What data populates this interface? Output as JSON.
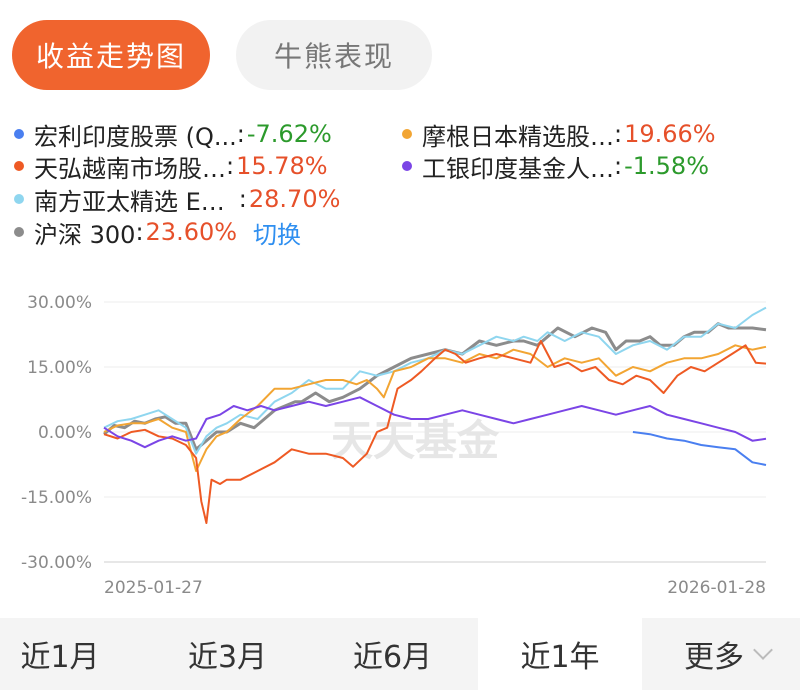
{
  "tabs": {
    "trend": "收益走势图",
    "bull_bear": "牛熊表现"
  },
  "legend": [
    {
      "name": "宏利印度股票 (Q...",
      "value": "-7.62%",
      "sign": "neg",
      "color": "#4a7ff0"
    },
    {
      "name": "摩根日本精选股…",
      "value": "19.66%",
      "sign": "pos",
      "color": "#f2a533"
    },
    {
      "name": "天弘越南市场股…",
      "value": "15.78%",
      "sign": "pos",
      "color": "#ee5a24"
    },
    {
      "name": "工银印度基金人…",
      "value": "-1.58%",
      "sign": "neg",
      "color": "#7b45e6"
    },
    {
      "name": "南方亚太精选 E…",
      "value": "28.70%",
      "sign": "pos",
      "color": "#8fd6ef"
    },
    {
      "name": "沪深 300",
      "value": "23.60%",
      "sign": "pos",
      "color": "#8c8c8c"
    }
  ],
  "switch_label": "切换",
  "watermark": "天天基金",
  "periods": [
    "近1月",
    "近3月",
    "近6月",
    "近1年",
    "更多"
  ],
  "active_period": "近1年",
  "chart_data": {
    "type": "line",
    "ylim": [
      -30,
      30
    ],
    "y_ticks": [
      "30.00%",
      "15.00%",
      "0.00%",
      "-15.00%",
      "-30.00%"
    ],
    "y_tick_values": [
      30,
      15,
      0,
      -15,
      -30
    ],
    "x_labels": [
      "2025-01-27",
      "2026-01-28"
    ],
    "grid": true,
    "series": [
      {
        "name": "沪深 300",
        "color": "#8c8c8c",
        "points": [
          [
            0,
            -0.5
          ],
          [
            0.03,
            1.5
          ],
          [
            0.06,
            1
          ],
          [
            0.09,
            2.5
          ],
          [
            0.12,
            2
          ],
          [
            0.15,
            3
          ],
          [
            0.18,
            3.5
          ],
          [
            0.21,
            2
          ],
          [
            0.24,
            2
          ],
          [
            0.27,
            -4
          ],
          [
            0.3,
            -2
          ],
          [
            0.33,
            0
          ],
          [
            0.36,
            0
          ],
          [
            0.4,
            2
          ],
          [
            0.44,
            1
          ],
          [
            0.47,
            3
          ],
          [
            0.5,
            5
          ],
          [
            0.53,
            6
          ],
          [
            0.56,
            7
          ],
          [
            0.58,
            7
          ],
          [
            0.62,
            9
          ],
          [
            0.66,
            7
          ],
          [
            0.7,
            8
          ],
          [
            0.75,
            10
          ],
          [
            0.8,
            13
          ],
          [
            0.85,
            15
          ],
          [
            0.9,
            17
          ],
          [
            0.95,
            18
          ],
          [
            1,
            19
          ],
          [
            1.05,
            18
          ],
          [
            1.1,
            21
          ],
          [
            1.15,
            20
          ],
          [
            1.2,
            21
          ],
          [
            1.23,
            21
          ],
          [
            1.27,
            20
          ],
          [
            1.3,
            22
          ],
          [
            1.33,
            24
          ],
          [
            1.38,
            22
          ],
          [
            1.43,
            24
          ],
          [
            1.47,
            23
          ],
          [
            1.5,
            19
          ],
          [
            1.53,
            21
          ],
          [
            1.57,
            21
          ],
          [
            1.6,
            22
          ],
          [
            1.63,
            20
          ],
          [
            1.67,
            20
          ],
          [
            1.7,
            22
          ],
          [
            1.73,
            23
          ],
          [
            1.77,
            23
          ],
          [
            1.8,
            25
          ],
          [
            1.83,
            24
          ],
          [
            1.86,
            24
          ],
          [
            1.9,
            24
          ],
          [
            1.94,
            23.6
          ]
        ]
      },
      {
        "name": "南方亚太精选 E…",
        "color": "#8fd6ef",
        "points": [
          [
            0,
            1
          ],
          [
            0.04,
            2.5
          ],
          [
            0.08,
            3
          ],
          [
            0.12,
            4
          ],
          [
            0.16,
            5
          ],
          [
            0.2,
            3
          ],
          [
            0.24,
            1
          ],
          [
            0.27,
            -5
          ],
          [
            0.3,
            -1
          ],
          [
            0.33,
            1
          ],
          [
            0.36,
            2
          ],
          [
            0.4,
            4
          ],
          [
            0.45,
            3
          ],
          [
            0.5,
            7
          ],
          [
            0.55,
            9
          ],
          [
            0.6,
            12
          ],
          [
            0.65,
            10
          ],
          [
            0.7,
            10
          ],
          [
            0.75,
            14
          ],
          [
            0.8,
            13
          ],
          [
            0.85,
            14
          ],
          [
            0.9,
            16
          ],
          [
            0.95,
            17
          ],
          [
            1,
            19
          ],
          [
            1.05,
            18
          ],
          [
            1.1,
            20
          ],
          [
            1.15,
            22
          ],
          [
            1.2,
            21
          ],
          [
            1.23,
            22
          ],
          [
            1.27,
            21
          ],
          [
            1.3,
            23
          ],
          [
            1.35,
            21
          ],
          [
            1.4,
            23
          ],
          [
            1.45,
            22
          ],
          [
            1.5,
            18
          ],
          [
            1.55,
            20
          ],
          [
            1.6,
            21
          ],
          [
            1.65,
            19
          ],
          [
            1.7,
            22
          ],
          [
            1.75,
            22
          ],
          [
            1.8,
            25
          ],
          [
            1.85,
            24
          ],
          [
            1.9,
            27
          ],
          [
            1.94,
            28.7
          ]
        ]
      },
      {
        "name": "摩根日本精选股…",
        "color": "#f2a533",
        "points": [
          [
            0,
            0
          ],
          [
            0.04,
            1.5
          ],
          [
            0.08,
            2
          ],
          [
            0.12,
            2
          ],
          [
            0.16,
            3
          ],
          [
            0.2,
            1
          ],
          [
            0.24,
            0
          ],
          [
            0.27,
            -9
          ],
          [
            0.3,
            -4
          ],
          [
            0.33,
            -1
          ],
          [
            0.36,
            0
          ],
          [
            0.4,
            3
          ],
          [
            0.45,
            6
          ],
          [
            0.5,
            10
          ],
          [
            0.55,
            10
          ],
          [
            0.6,
            11
          ],
          [
            0.65,
            12
          ],
          [
            0.7,
            12
          ],
          [
            0.74,
            11
          ],
          [
            0.77,
            12
          ],
          [
            0.8,
            10
          ],
          [
            0.82,
            8
          ],
          [
            0.85,
            14
          ],
          [
            0.9,
            15
          ],
          [
            0.95,
            17
          ],
          [
            1,
            17
          ],
          [
            1.05,
            16
          ],
          [
            1.1,
            18
          ],
          [
            1.15,
            17
          ],
          [
            1.2,
            19
          ],
          [
            1.25,
            18
          ],
          [
            1.3,
            15
          ],
          [
            1.35,
            17
          ],
          [
            1.4,
            16
          ],
          [
            1.45,
            17
          ],
          [
            1.5,
            13
          ],
          [
            1.55,
            15
          ],
          [
            1.6,
            14
          ],
          [
            1.65,
            16
          ],
          [
            1.7,
            17
          ],
          [
            1.75,
            17
          ],
          [
            1.8,
            18
          ],
          [
            1.85,
            20
          ],
          [
            1.9,
            19
          ],
          [
            1.94,
            19.66
          ]
        ]
      },
      {
        "name": "天弘越南市场股…",
        "color": "#ee5a24",
        "points": [
          [
            0,
            -0.5
          ],
          [
            0.04,
            -1.5
          ],
          [
            0.08,
            0
          ],
          [
            0.12,
            0.5
          ],
          [
            0.16,
            -1
          ],
          [
            0.2,
            -1.5
          ],
          [
            0.24,
            -3
          ],
          [
            0.27,
            -6
          ],
          [
            0.285,
            -16
          ],
          [
            0.3,
            -21
          ],
          [
            0.315,
            -11
          ],
          [
            0.34,
            -12
          ],
          [
            0.36,
            -11
          ],
          [
            0.4,
            -11
          ],
          [
            0.45,
            -9
          ],
          [
            0.5,
            -7
          ],
          [
            0.55,
            -4
          ],
          [
            0.6,
            -5
          ],
          [
            0.65,
            -5
          ],
          [
            0.7,
            -6
          ],
          [
            0.73,
            -8
          ],
          [
            0.77,
            -5
          ],
          [
            0.8,
            0
          ],
          [
            0.83,
            1
          ],
          [
            0.86,
            10
          ],
          [
            0.9,
            12
          ],
          [
            0.93,
            14
          ],
          [
            0.97,
            17
          ],
          [
            1,
            19
          ],
          [
            1.03,
            18
          ],
          [
            1.06,
            16
          ],
          [
            1.1,
            17
          ],
          [
            1.15,
            18
          ],
          [
            1.2,
            17
          ],
          [
            1.25,
            16
          ],
          [
            1.28,
            21
          ],
          [
            1.32,
            15
          ],
          [
            1.36,
            16
          ],
          [
            1.4,
            14
          ],
          [
            1.44,
            15
          ],
          [
            1.48,
            12
          ],
          [
            1.52,
            11
          ],
          [
            1.56,
            13
          ],
          [
            1.6,
            12
          ],
          [
            1.64,
            9
          ],
          [
            1.68,
            13
          ],
          [
            1.72,
            15
          ],
          [
            1.76,
            14
          ],
          [
            1.8,
            16
          ],
          [
            1.84,
            18
          ],
          [
            1.88,
            20
          ],
          [
            1.91,
            16
          ],
          [
            1.94,
            15.78
          ]
        ]
      },
      {
        "name": "工银印度基金人…",
        "color": "#7b45e6",
        "points": [
          [
            0,
            1
          ],
          [
            0.04,
            -1
          ],
          [
            0.08,
            -2
          ],
          [
            0.12,
            -3.5
          ],
          [
            0.16,
            -2
          ],
          [
            0.2,
            -1
          ],
          [
            0.24,
            -2
          ],
          [
            0.27,
            -1.5
          ],
          [
            0.3,
            3
          ],
          [
            0.34,
            4
          ],
          [
            0.38,
            6
          ],
          [
            0.42,
            5
          ],
          [
            0.46,
            6
          ],
          [
            0.5,
            5
          ],
          [
            0.55,
            6
          ],
          [
            0.6,
            7
          ],
          [
            0.65,
            6
          ],
          [
            0.7,
            7
          ],
          [
            0.75,
            8
          ],
          [
            0.8,
            6
          ],
          [
            0.85,
            4
          ],
          [
            0.9,
            3
          ],
          [
            0.95,
            3
          ],
          [
            1,
            4
          ],
          [
            1.05,
            5
          ],
          [
            1.1,
            4
          ],
          [
            1.15,
            3
          ],
          [
            1.2,
            2
          ],
          [
            1.25,
            3
          ],
          [
            1.3,
            4
          ],
          [
            1.35,
            5
          ],
          [
            1.4,
            6
          ],
          [
            1.45,
            5
          ],
          [
            1.5,
            4
          ],
          [
            1.55,
            5
          ],
          [
            1.6,
            6
          ],
          [
            1.65,
            4
          ],
          [
            1.7,
            3
          ],
          [
            1.75,
            2
          ],
          [
            1.8,
            1
          ],
          [
            1.85,
            0
          ],
          [
            1.9,
            -2
          ],
          [
            1.94,
            -1.58
          ]
        ]
      },
      {
        "name": "宏利印度股票 (Q...",
        "color": "#4a7ff0",
        "points": [
          [
            1.55,
            0
          ],
          [
            1.6,
            -0.5
          ],
          [
            1.65,
            -1.5
          ],
          [
            1.7,
            -2
          ],
          [
            1.75,
            -3
          ],
          [
            1.8,
            -3.5
          ],
          [
            1.85,
            -4
          ],
          [
            1.9,
            -7
          ],
          [
            1.94,
            -7.62
          ]
        ]
      }
    ]
  }
}
